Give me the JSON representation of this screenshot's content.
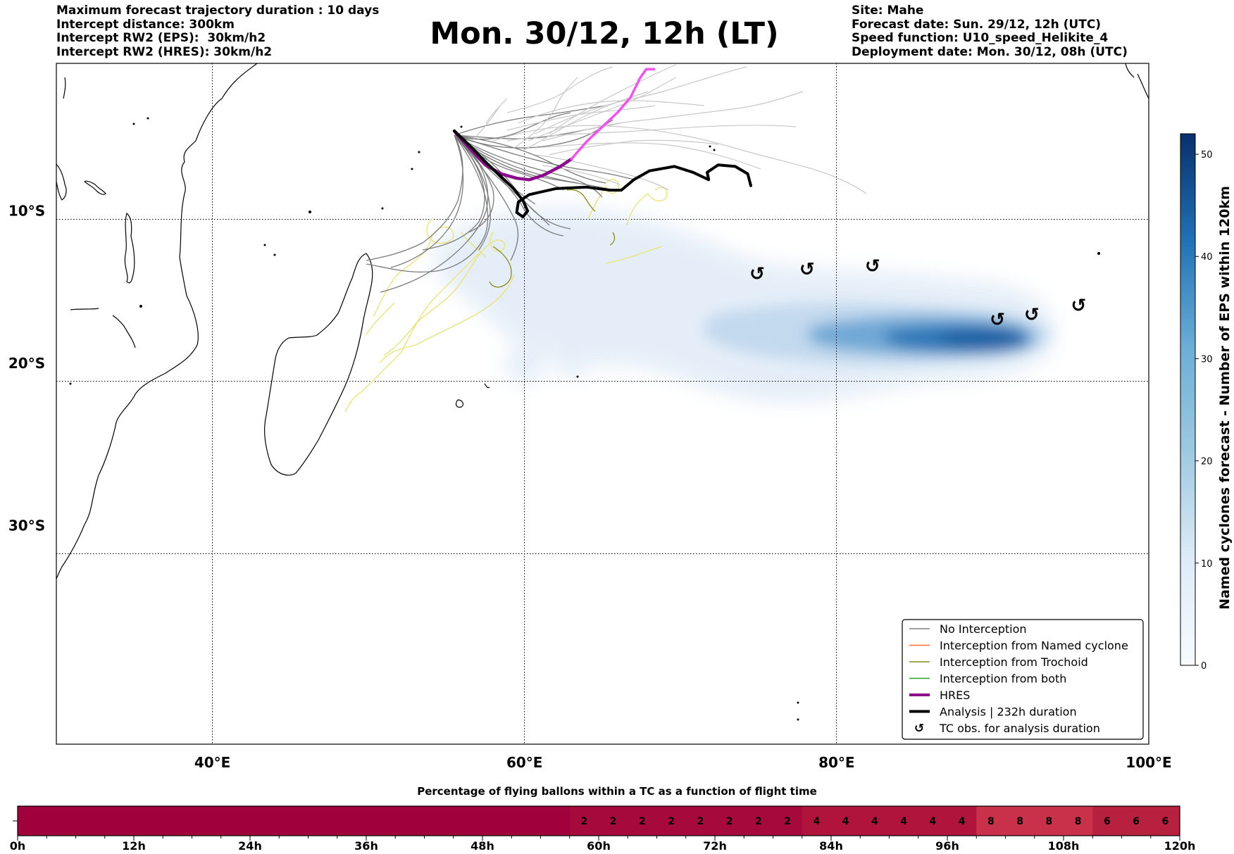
{
  "title": "Mon. 30/12, 12h (LT)",
  "header_left": [
    "Maximum forecast trajectory duration : 10 days",
    "Intercept distance: 300km",
    "Intercept RW2 (EPS):  30km/h2",
    "Intercept RW2 (HRES): 30km/h2"
  ],
  "header_right": [
    "Site: Mahe",
    "Forecast date: Sun. 29/12, 12h (UTC)",
    "Speed function: U10_speed_Helikite_4",
    "Deployment date: Mon. 30/12, 08h (UTC)"
  ],
  "colors": {
    "no_interception": "#808080",
    "named_cyclone": "#ff6a2e",
    "trochoid": "#8a8a1a",
    "both": "#2ca02c",
    "hres": "#8b0a8b",
    "hres_tail": "#ee55ee",
    "analysis": "#000000",
    "density_low": "#deebf7",
    "density_high": "#08306b",
    "bar_base": "#a0003c"
  },
  "chart_data": [
    {
      "type": "map",
      "x_tick_labels": [
        "40°E",
        "60°E",
        "80°E",
        "100°E"
      ],
      "y_tick_labels": [
        "10°S",
        "20°S",
        "30°S"
      ],
      "lon_range": [
        30,
        100
      ],
      "lat_range": [
        -42,
        0
      ],
      "grid": true,
      "legend_position": "lower-right",
      "legend": [
        {
          "label": "No Interception",
          "style": "thin-line",
          "color": "#808080"
        },
        {
          "label": "Interception from Named cyclone",
          "style": "thin-line",
          "color": "#ff6a2e"
        },
        {
          "label": "Interception from Trochoid",
          "style": "thin-line",
          "color": "#8a8a1a"
        },
        {
          "label": "Interception from both",
          "style": "thin-line",
          "color": "#2ca02c"
        },
        {
          "label": "HRES",
          "style": "thick-line",
          "color": "#8b0a8b"
        },
        {
          "label": "Analysis | 232h duration",
          "style": "thick-line",
          "color": "#000000"
        },
        {
          "label": "TC obs. for analysis duration",
          "style": "symbol",
          "color": "#000000"
        }
      ],
      "launch_site": {
        "name": "Mahe",
        "lon": 55.5,
        "lat": -4.6
      },
      "hres_track": [
        [
          55.5,
          -4.6
        ],
        [
          56.5,
          -5.8
        ],
        [
          57.5,
          -6.9
        ],
        [
          58.5,
          -7.5
        ],
        [
          59.5,
          -7.8
        ],
        [
          60.3,
          -7.9
        ],
        [
          61.2,
          -7.6
        ],
        [
          62.3,
          -7.0
        ],
        [
          63.0,
          -6.5
        ],
        [
          64.0,
          -5.3
        ],
        [
          65.0,
          -4.3
        ],
        [
          66.0,
          -3.3
        ],
        [
          66.8,
          -2.3
        ],
        [
          67.4,
          -1.0
        ],
        [
          67.8,
          -0.4
        ],
        [
          68.3,
          -0.4
        ]
      ],
      "analysis_track": [
        [
          55.5,
          -4.6
        ],
        [
          56.5,
          -5.6
        ],
        [
          57.5,
          -6.7
        ],
        [
          58.5,
          -7.7
        ],
        [
          59.3,
          -8.5
        ],
        [
          59.9,
          -9.3
        ],
        [
          60.2,
          -10.0
        ],
        [
          59.9,
          -10.4
        ],
        [
          59.5,
          -10.1
        ],
        [
          59.6,
          -9.4
        ],
        [
          60.3,
          -8.9
        ],
        [
          62.0,
          -8.5
        ],
        [
          64.0,
          -8.4
        ],
        [
          65.5,
          -8.6
        ],
        [
          66.2,
          -8.6
        ],
        [
          67.0,
          -7.9
        ],
        [
          68.0,
          -7.3
        ],
        [
          69.6,
          -7.0
        ],
        [
          70.8,
          -7.4
        ],
        [
          71.8,
          -7.9
        ],
        [
          71.7,
          -7.4
        ],
        [
          72.4,
          -6.9
        ],
        [
          73.5,
          -7.0
        ],
        [
          74.3,
          -7.5
        ],
        [
          74.5,
          -8.3
        ]
      ],
      "tc_obs": [
        [
          74.9,
          -14.2
        ],
        [
          78.1,
          -13.9
        ],
        [
          82.3,
          -13.7
        ],
        [
          90.3,
          -17.2
        ],
        [
          92.5,
          -16.9
        ],
        [
          95.5,
          -16.3
        ]
      ],
      "density_colorbar": {
        "label": "Named cyclones forecast - Number of EPS within 120km",
        "ticks": [
          0,
          10,
          20,
          30,
          40,
          50
        ],
        "range": [
          0,
          52
        ]
      }
    },
    {
      "type": "heatmap",
      "title": "Percentage of flying ballons within a TC as a function of flight time",
      "x_tick_labels": [
        "0h",
        "12h",
        "24h",
        "36h",
        "48h",
        "60h",
        "72h",
        "84h",
        "96h",
        "108h",
        "120h"
      ],
      "hours": [
        0,
        3,
        6,
        9,
        12,
        15,
        18,
        21,
        24,
        27,
        30,
        33,
        36,
        39,
        42,
        45,
        48,
        51,
        54,
        57,
        60,
        63,
        66,
        69,
        72,
        75,
        78,
        81,
        84,
        87,
        90,
        93,
        96,
        99,
        102,
        105,
        108,
        111,
        114,
        117
      ],
      "values": [
        0,
        0,
        0,
        0,
        0,
        0,
        0,
        0,
        0,
        0,
        0,
        0,
        0,
        0,
        0,
        0,
        0,
        0,
        0,
        2,
        2,
        2,
        2,
        2,
        2,
        2,
        2,
        4,
        4,
        4,
        4,
        4,
        4,
        8,
        8,
        8,
        8,
        6,
        6,
        6
      ]
    }
  ]
}
